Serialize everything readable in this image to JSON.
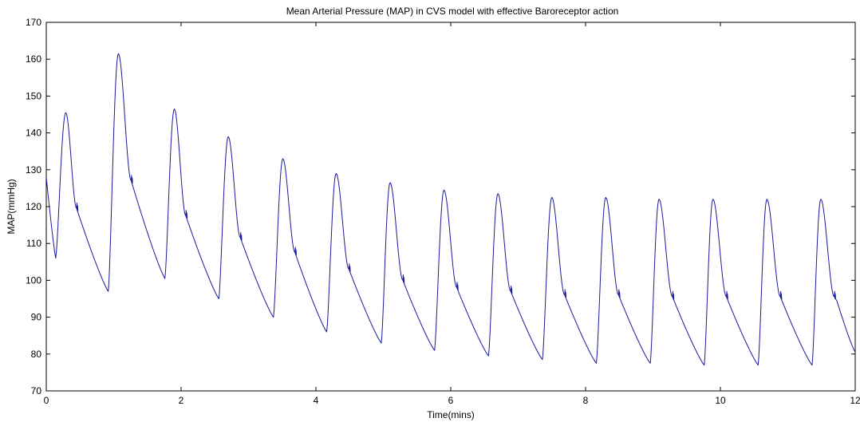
{
  "chart_data": {
    "type": "line",
    "title": "Mean Arterial Pressure (MAP) in CVS model with effective Baroreceptor action",
    "xlabel": "Time(mins)",
    "ylabel": "MAP(mmHg)",
    "xlim": [
      0,
      12
    ],
    "ylim": [
      70,
      170
    ],
    "xticks": [
      0,
      2,
      4,
      6,
      8,
      10,
      12
    ],
    "yticks": [
      70,
      80,
      90,
      100,
      110,
      120,
      130,
      140,
      150,
      160,
      170
    ],
    "grid": false,
    "legend": "none",
    "line_color": "#1a1a9c",
    "series": [
      {
        "cycles": [
          {
            "start": 0.0,
            "start_value": 128,
            "trough": 106,
            "trough_time": 0.14,
            "peak": 145.5,
            "peak_time": 0.29,
            "notch": 119.5,
            "notch_time": 0.45
          },
          {
            "start": 0.45,
            "start_value": 119.5,
            "trough": 97,
            "trough_time": 0.92,
            "peak": 161.5,
            "peak_time": 1.07,
            "notch": 127,
            "notch_time": 1.26
          },
          {
            "start": 1.26,
            "start_value": 127,
            "trough": 100.5,
            "trough_time": 1.76,
            "peak": 146.5,
            "peak_time": 1.9,
            "notch": 117.5,
            "notch_time": 2.07
          },
          {
            "start": 2.07,
            "start_value": 117.5,
            "trough": 95,
            "trough_time": 2.56,
            "peak": 139,
            "peak_time": 2.7,
            "notch": 111.5,
            "notch_time": 2.88
          },
          {
            "start": 2.88,
            "start_value": 111.5,
            "trough": 90,
            "trough_time": 3.37,
            "peak": 133,
            "peak_time": 3.51,
            "notch": 107.5,
            "notch_time": 3.69
          },
          {
            "start": 3.69,
            "start_value": 107.5,
            "trough": 86,
            "trough_time": 4.16,
            "peak": 129,
            "peak_time": 4.3,
            "notch": 103,
            "notch_time": 4.49
          },
          {
            "start": 4.49,
            "start_value": 103,
            "trough": 83,
            "trough_time": 4.97,
            "peak": 126.5,
            "peak_time": 5.1,
            "notch": 100,
            "notch_time": 5.29
          },
          {
            "start": 5.29,
            "start_value": 100,
            "trough": 81,
            "trough_time": 5.76,
            "peak": 124.5,
            "peak_time": 5.9,
            "notch": 98,
            "notch_time": 6.09
          },
          {
            "start": 6.09,
            "start_value": 98,
            "trough": 79.5,
            "trough_time": 6.56,
            "peak": 123.5,
            "peak_time": 6.7,
            "notch": 97,
            "notch_time": 6.89
          },
          {
            "start": 6.89,
            "start_value": 97,
            "trough": 78.5,
            "trough_time": 7.36,
            "peak": 122.5,
            "peak_time": 7.5,
            "notch": 96,
            "notch_time": 7.69
          },
          {
            "start": 7.69,
            "start_value": 96,
            "trough": 77.5,
            "trough_time": 8.16,
            "peak": 122.5,
            "peak_time": 8.3,
            "notch": 96,
            "notch_time": 8.49
          },
          {
            "start": 8.49,
            "start_value": 96,
            "trough": 77.5,
            "trough_time": 8.96,
            "peak": 122,
            "peak_time": 9.09,
            "notch": 95.5,
            "notch_time": 9.29
          },
          {
            "start": 9.29,
            "start_value": 95.5,
            "trough": 77,
            "trough_time": 9.76,
            "peak": 122,
            "peak_time": 9.89,
            "notch": 95.5,
            "notch_time": 10.09
          },
          {
            "start": 10.09,
            "start_value": 95.5,
            "trough": 77,
            "trough_time": 10.56,
            "peak": 122,
            "peak_time": 10.69,
            "notch": 95.5,
            "notch_time": 10.89
          },
          {
            "start": 10.89,
            "start_value": 95.5,
            "trough": 77,
            "trough_time": 11.36,
            "peak": 122,
            "peak_time": 11.49,
            "notch": 95.5,
            "notch_time": 11.69
          }
        ],
        "end": {
          "time": 12.0,
          "value": 80.5
        }
      }
    ]
  }
}
